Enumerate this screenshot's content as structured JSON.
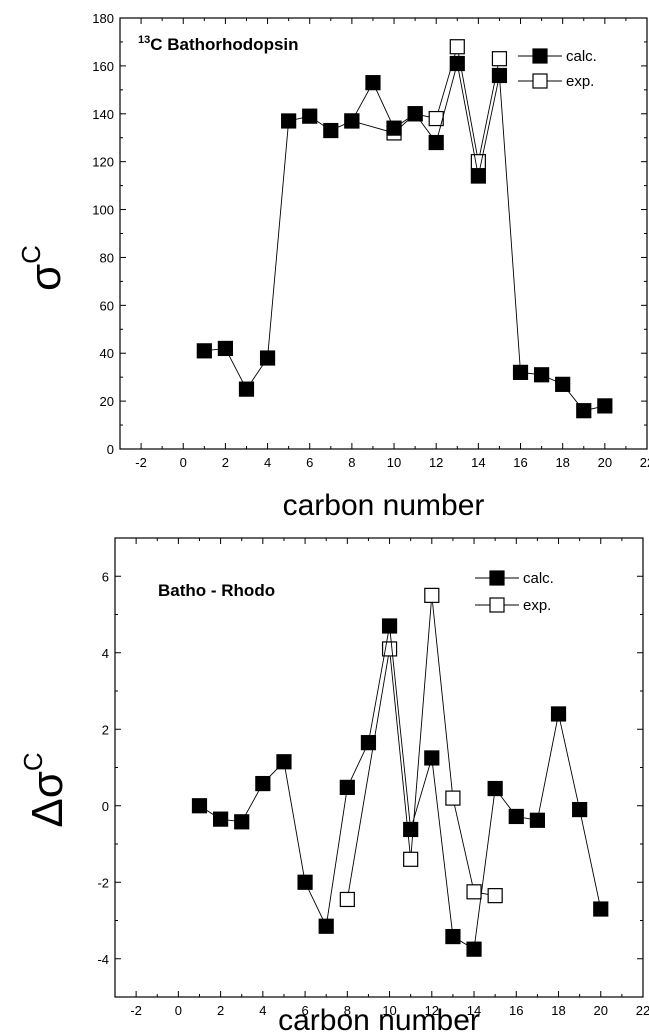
{
  "chart_data": [
    {
      "type": "scatter",
      "title": "Bathorhodopsin",
      "title_prefix": "13",
      "title_element": "C",
      "xlabel": "carbon number",
      "ylabel": "σ",
      "ylabel_sup": "C",
      "xlim": [
        -3,
        22
      ],
      "ylim": [
        0,
        180
      ],
      "xticks": [
        -2,
        0,
        2,
        4,
        6,
        8,
        10,
        12,
        14,
        16,
        18,
        20,
        22
      ],
      "yticks": [
        0,
        20,
        40,
        60,
        80,
        100,
        120,
        140,
        160,
        180
      ],
      "legend_position": "top-right",
      "grid": false,
      "series": [
        {
          "name": "calc.",
          "marker": "filled-square",
          "x": [
            1,
            2,
            3,
            4,
            5,
            6,
            7,
            8,
            9,
            10,
            11,
            12,
            13,
            14,
            15,
            16,
            17,
            18,
            19,
            20
          ],
          "y": [
            41,
            42,
            25,
            38,
            137,
            139,
            133,
            137,
            153,
            134,
            140,
            128,
            161,
            114,
            156,
            32,
            31,
            27,
            16,
            18
          ]
        },
        {
          "name": "exp.",
          "marker": "open-square",
          "x": [
            8,
            10,
            11,
            12,
            13,
            14,
            15
          ],
          "y": [
            137,
            132,
            140,
            138,
            168,
            120,
            163
          ]
        }
      ]
    },
    {
      "type": "scatter",
      "title": "Batho - Rhodo",
      "xlabel": "carbon number",
      "ylabel": "Δσ",
      "ylabel_sup": "C",
      "xlim": [
        -3,
        22
      ],
      "ylim": [
        -5,
        7
      ],
      "xticks": [
        -2,
        0,
        2,
        4,
        6,
        8,
        10,
        12,
        14,
        16,
        18,
        20,
        22
      ],
      "yticks": [
        -4,
        -2,
        0,
        2,
        4,
        6
      ],
      "legend_position": "top-right",
      "grid": false,
      "series": [
        {
          "name": "calc.",
          "marker": "filled-square",
          "x": [
            1,
            2,
            3,
            4,
            5,
            6,
            7,
            8,
            9,
            10,
            11,
            12,
            13,
            14,
            15,
            16,
            17,
            18,
            19,
            20
          ],
          "y": [
            0.0,
            -0.35,
            -0.42,
            0.58,
            1.15,
            -2.0,
            -3.15,
            0.48,
            1.65,
            4.7,
            -0.62,
            1.25,
            -3.42,
            -3.75,
            0.45,
            -0.28,
            -0.38,
            2.4,
            -0.1,
            -2.7
          ]
        },
        {
          "name": "exp.",
          "marker": "open-square",
          "x": [
            8,
            10,
            11,
            12,
            13,
            14,
            15
          ],
          "y": [
            -2.45,
            4.1,
            -1.4,
            5.5,
            0.2,
            -2.25,
            -2.35
          ]
        }
      ]
    }
  ]
}
